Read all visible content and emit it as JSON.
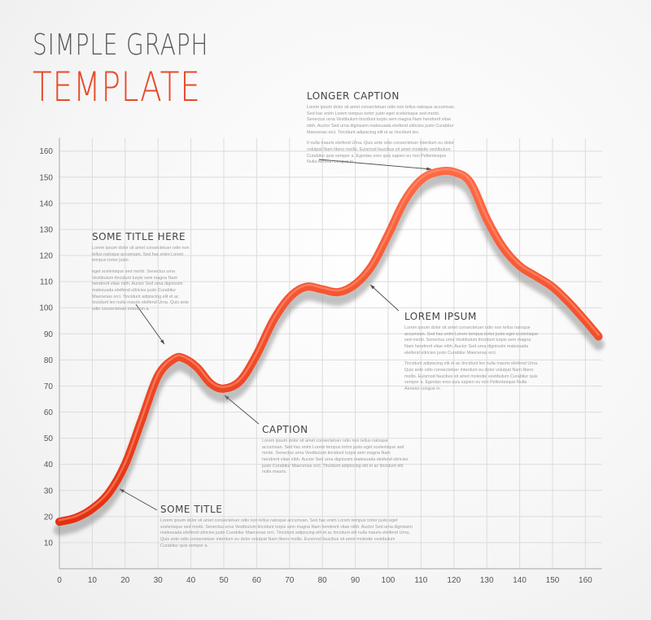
{
  "header": {
    "line1": "SIMPLE GRAPH",
    "line2": "TEMPLATE"
  },
  "colors": {
    "accent": "#e8492a",
    "line": "#ee3b1c",
    "grid": "#dcdcdc",
    "text": "#555555"
  },
  "chart_data": {
    "type": "line",
    "title": "SIMPLE GRAPH TEMPLATE",
    "xlabel": "",
    "ylabel": "",
    "xlim": [
      0,
      165
    ],
    "ylim": [
      0,
      165
    ],
    "x_ticks": [
      "0",
      "10",
      "20",
      "30",
      "40",
      "50",
      "60",
      "70",
      "80",
      "90",
      "100",
      "110",
      "120",
      "130",
      "140",
      "150",
      "160"
    ],
    "y_ticks": [
      "10",
      "20",
      "30",
      "40",
      "50",
      "60",
      "70",
      "80",
      "90",
      "100",
      "110",
      "120",
      "130",
      "140",
      "150",
      "160"
    ],
    "grid": true,
    "series": [
      {
        "x": [
          0,
          5,
          10,
          15,
          20,
          25,
          30,
          35,
          38,
          42,
          46,
          50,
          55,
          60,
          65,
          70,
          75,
          80,
          85,
          90,
          95,
          100,
          105,
          110,
          115,
          120,
          125,
          130,
          135,
          140,
          145,
          150,
          155,
          160,
          164
        ],
        "y": [
          18,
          19.5,
          23,
          29,
          40,
          57,
          74,
          80.5,
          80.5,
          77,
          71,
          69,
          72,
          82,
          95,
          104,
          108,
          107,
          106,
          109,
          116,
          128,
          141,
          149,
          152,
          152,
          148,
          134,
          123,
          116,
          112,
          108,
          102,
          95,
          89
        ]
      }
    ]
  },
  "callouts": [
    {
      "title": "LONGER CAPTION",
      "paragraphs": [
        "Lorem ipsum dolor sit amet consectetuer odio non tellus natoque accumsan. Sed hac enim Lorem tempus tortor justo eget scelerisque sed morbi. Senectus urna Vestibulum tincidunt turpis sem magna Nam hendrerit vitae nibh. Auctor Sed urna dignissim malesuada eleifend ultricies justo Curabitur Maecenas orci. Tincidunt adipiscing elit et ac tincidunt leo.",
        "It nulla mauris eleifend Urna. Quis ante odio consectetuer interdum eu dolor volutpat Nam libero mollis. Euismod faucibus sit amet molestie vestibulum Curabitur quis semper a. Egestas eros quis sapien eu non Pellentesque Nulla Aenean congue in."
      ]
    },
    {
      "title": "SOME TITLE HERE",
      "paragraphs": [
        "Lorem ipsum dolor sit amet consectetuer odio non tellus natoque accumsan. Sed hac enim Lorem tempus tortor justo.",
        "eget scelerisque sed morbi. Senectus urna Vestibulum tincidunt turpis sem magna Nam hendrerit vitae nibh. Auctor Sed urna dignissim malesuada eleifend ultricies justo Curabitur Maecenas orci. Tincidunt adipiscing elit et ac tincidunt leo nulla mauris eleifend Urna. Quis ante odio consectetuer interdum a."
      ]
    },
    {
      "title": "LOREM IPSUM",
      "paragraphs": [
        "Lorem ipsum dolor sit amet consectetuer odio non tellus natoque accumsan. Sed hac enim Lorem tempus tortor justo eget scelerisque sed morbi. Senectus urna Vestibulum tincidunt turpis sem magna Nam hendrerit vitae nibh. Auctor Sed urna dignissim malesuada eleifend ultricies justo Curabitur Maecenas orci.",
        "Tincidunt adipiscing elit et ac tincidunt leo nulla mauris eleifend Urna. Quis ante odio consectetuer interdum eu dolor volutpat Nam libero mollis. Euismod faucibus sit amet molestie vestibulum Curabitur quis semper a. Egestas eros quis sapien eu non Pellentesque Nulla Aenean congue in."
      ]
    },
    {
      "title": "CAPTION",
      "paragraphs": [
        "Lorem ipsum dolor sit amet consectetuer odio non tellus natoque accumsan. Sed hac enim Lorem tempus tortor justo eget scelerisque sed morbi. Senectus urna Vestibulum tincidunt turpis sem magna Nam hendrerit vitae nibh. Auctor Sed urna dignissim malesuada eleifend ultricies justo Curabitur Maecenas orci. Tincidunt adipiscing elit et ac tincidunt elit nulla mauris."
      ]
    },
    {
      "title": "SOME TITLE",
      "paragraphs": [
        "Lorem ipsum dolor sit amet consectetuer odio non tellus natoque accumsan. Sed hac enim Lorem tempus tortor justo eget scelerisque sed morbi. Senectus urna Vestibulum tincidunt turpis sem magna Nam hendrerit vitae nibh. Auctor Sed urna dignissim malesuada eleifend ultricies justo Curabitur Maecenas orci. Tincidunt adipiscing elit et ac tincidunt elit nulla mauris eleifend Urna. Quis ante odio consectetuer interdum eu dolor volutpat Nam libero mollis. Euismod faucibus sit amet molestie vestibulum Curabitur quis semper a."
      ]
    }
  ]
}
